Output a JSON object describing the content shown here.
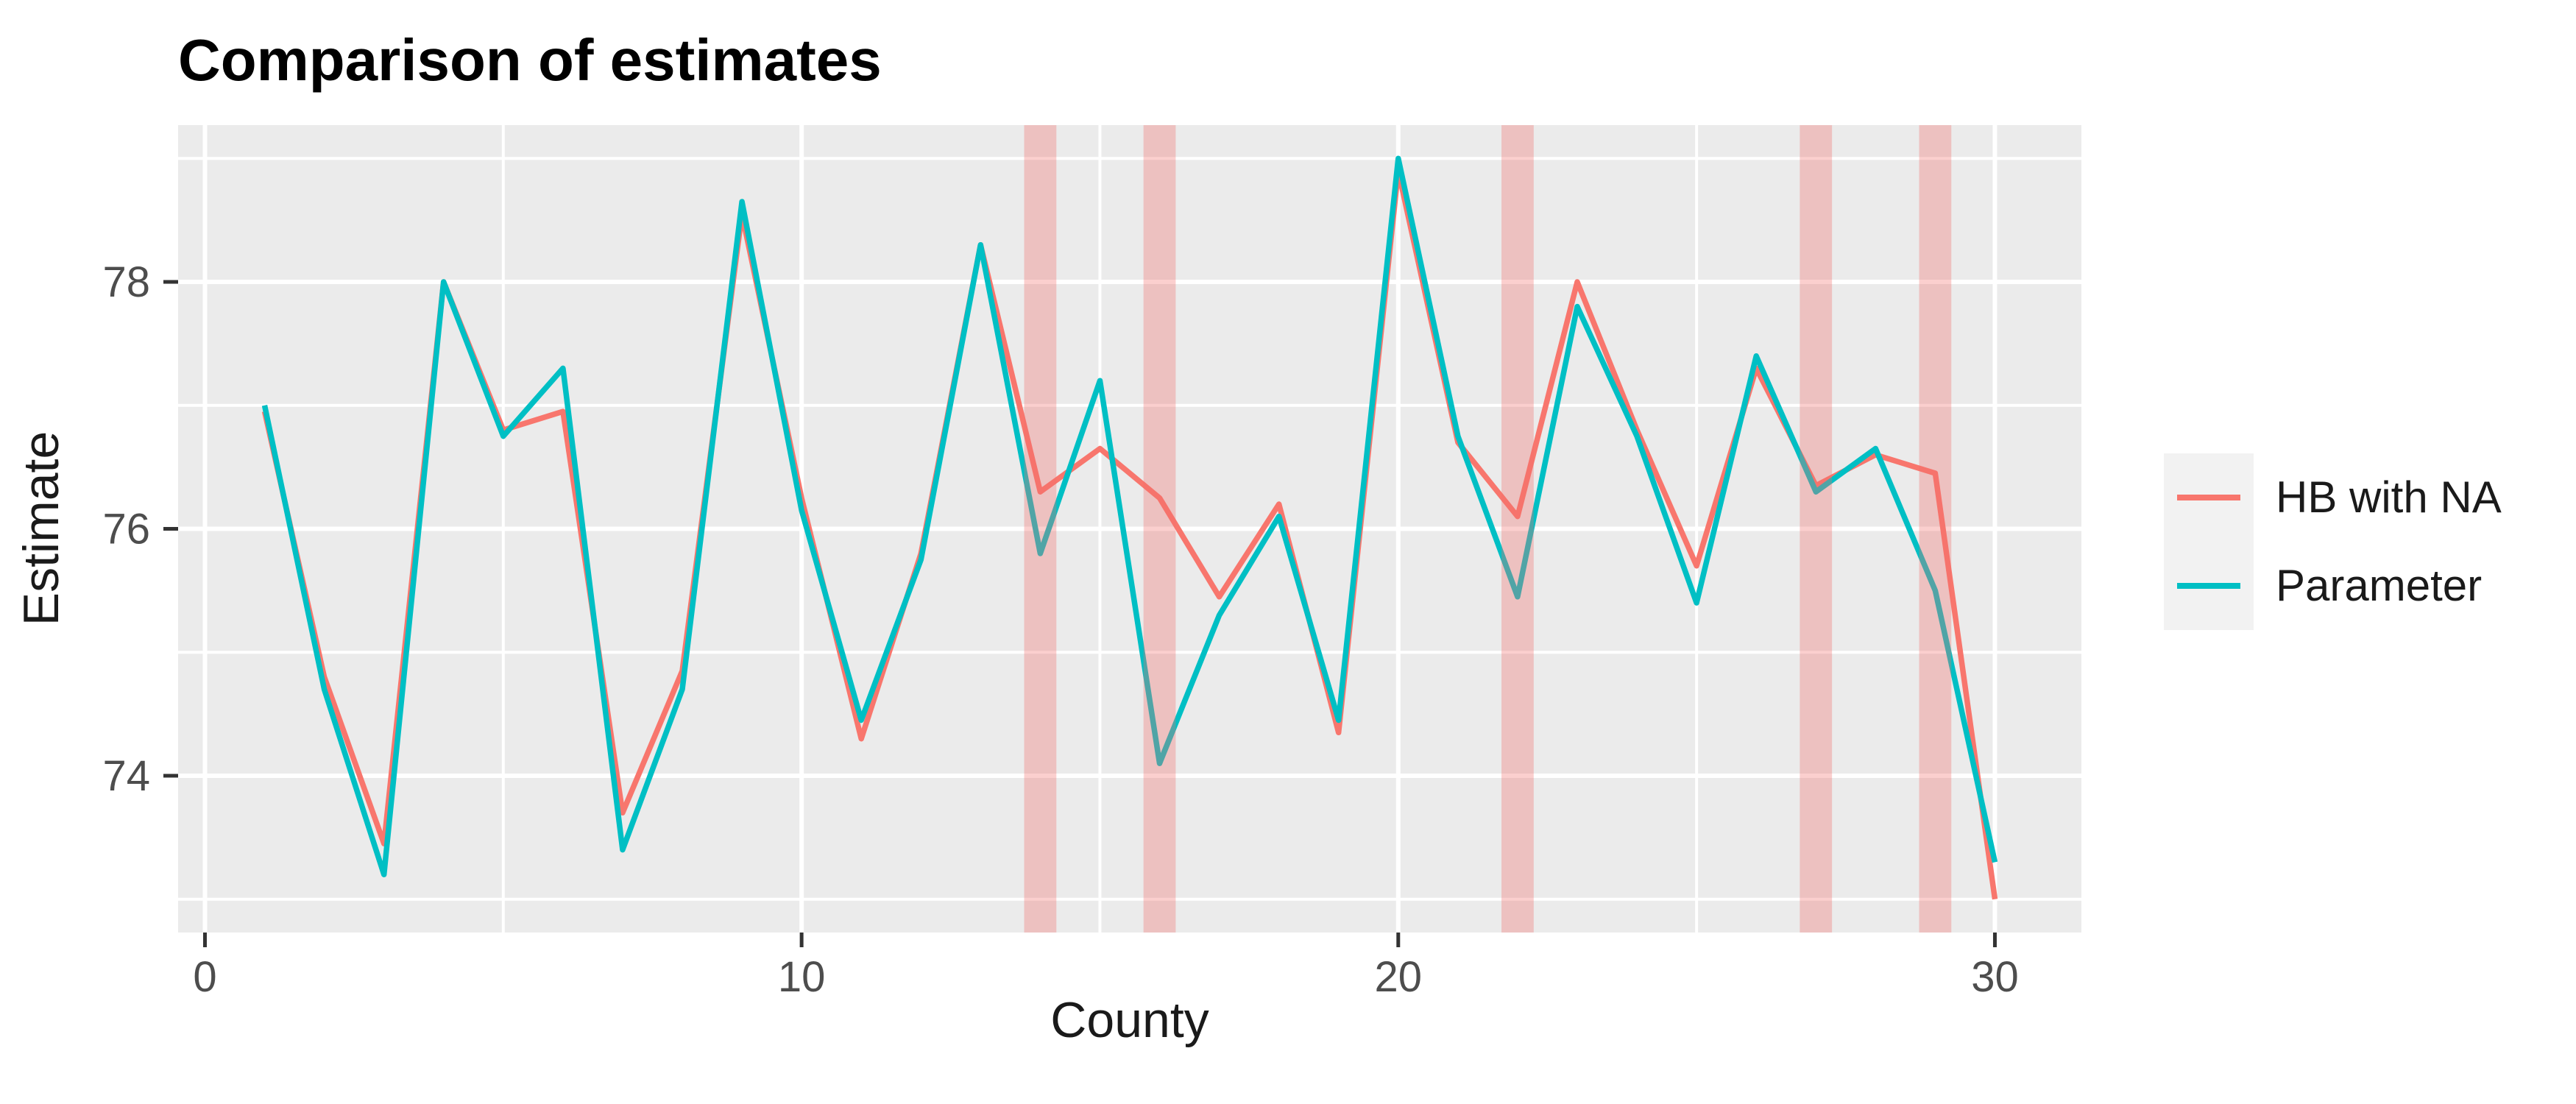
{
  "title": "Comparison of estimates",
  "axes": {
    "x_title": "County",
    "y_title": "Estimate"
  },
  "legend": {
    "key_bg": "#F2F2F2",
    "items": [
      {
        "label": "HB with NA",
        "color": "#F8766D"
      },
      {
        "label": "Parameter",
        "color": "#00BFC4"
      }
    ]
  },
  "chart_data": {
    "type": "line",
    "title": "Comparison of estimates",
    "xlabel": "County",
    "ylabel": "Estimate",
    "x": [
      1,
      2,
      3,
      4,
      5,
      6,
      7,
      8,
      9,
      10,
      11,
      12,
      13,
      14,
      15,
      16,
      17,
      18,
      19,
      20,
      21,
      22,
      23,
      24,
      25,
      26,
      27,
      28,
      29,
      30
    ],
    "series": [
      {
        "name": "HB with NA",
        "color": "#F8766D",
        "values": [
          76.95,
          74.8,
          73.45,
          78.0,
          76.8,
          76.95,
          73.7,
          74.85,
          78.55,
          76.25,
          74.3,
          75.8,
          78.3,
          76.3,
          76.65,
          76.25,
          75.45,
          76.2,
          74.35,
          78.9,
          76.7,
          76.1,
          78.0,
          76.8,
          75.7,
          77.3,
          76.35,
          76.6,
          76.45,
          73.0
        ]
      },
      {
        "name": "Parameter",
        "color": "#00BFC4",
        "values": [
          77.0,
          74.7,
          73.2,
          78.0,
          76.75,
          77.3,
          73.4,
          74.7,
          78.65,
          76.15,
          74.45,
          75.75,
          78.3,
          75.8,
          77.2,
          74.1,
          75.3,
          76.1,
          74.45,
          79.0,
          76.75,
          75.45,
          77.8,
          76.75,
          75.4,
          77.4,
          76.3,
          76.65,
          75.5,
          73.3
        ]
      }
    ],
    "na_bands": {
      "counties": [
        14,
        16,
        22,
        27,
        29
      ],
      "half_width": 0.27,
      "color": "rgba(244,109,105,0.33)"
    },
    "xlim": [
      -0.45,
      31.45
    ],
    "ylim": [
      72.73,
      79.27
    ],
    "x_breaks": [
      0,
      10,
      20,
      30
    ],
    "x_minor": [
      5,
      15,
      25
    ],
    "y_breaks": [
      74,
      76,
      78
    ],
    "y_minor": [
      73,
      75,
      77,
      79
    ],
    "grid_on": true,
    "legend_position": "right",
    "panel_bg": "#EBEBEB",
    "grid_color": "#FFFFFF",
    "tick_color": "#333333",
    "tick_label_color": "#4D4D4D"
  }
}
